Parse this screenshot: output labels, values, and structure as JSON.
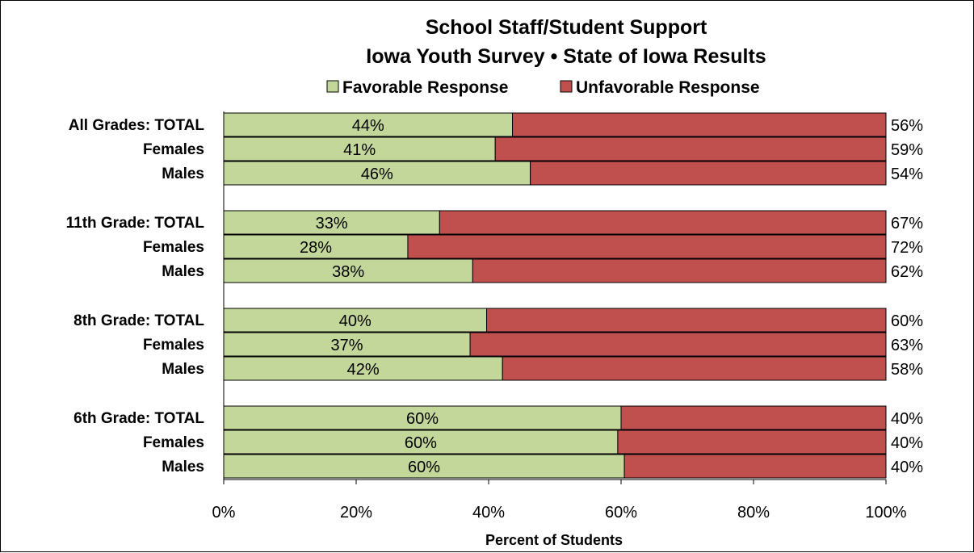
{
  "chart_data": {
    "type": "bar",
    "orientation": "horizontal",
    "stacked": true,
    "title": [
      "School Staff/Student Support",
      "Iowa Youth Survey • State of Iowa Results"
    ],
    "xlabel": "Percent of Students",
    "xlim": [
      0,
      100
    ],
    "xticks": [
      "0%",
      "20%",
      "40%",
      "60%",
      "80%",
      "100%"
    ],
    "grid": false,
    "legend_position": "top",
    "categories": [
      "All Grades:  TOTAL",
      "Females",
      "Males",
      "11th Grade:  TOTAL",
      "Females",
      "Males",
      "8th Grade:  TOTAL",
      "Females",
      "Males",
      "6th Grade:  TOTAL",
      "Females",
      "Males"
    ],
    "groups": [
      3,
      3,
      3,
      3
    ],
    "series": [
      {
        "name": "Favorable Response",
        "color": "#c4d79b",
        "values": [
          43.6,
          41,
          46.3,
          32.6,
          27.8,
          37.6,
          39.7,
          37.2,
          42.1,
          60,
          59.5,
          60.5
        ],
        "labels": [
          "44%",
          "41%",
          "46%",
          "33%",
          "28%",
          "38%",
          "40%",
          "37%",
          "42%",
          "60%",
          "60%",
          "60%"
        ]
      },
      {
        "name": "Unfavorable Response",
        "color": "#c0504d",
        "values": [
          56.4,
          59,
          53.7,
          67.4,
          72.2,
          62.4,
          60.3,
          62.8,
          57.9,
          40,
          40.5,
          39.5
        ],
        "labels": [
          "56%",
          "59%",
          "54%",
          "67%",
          "72%",
          "62%",
          "60%",
          "63%",
          "58%",
          "40%",
          "40%",
          "40%"
        ]
      }
    ]
  }
}
